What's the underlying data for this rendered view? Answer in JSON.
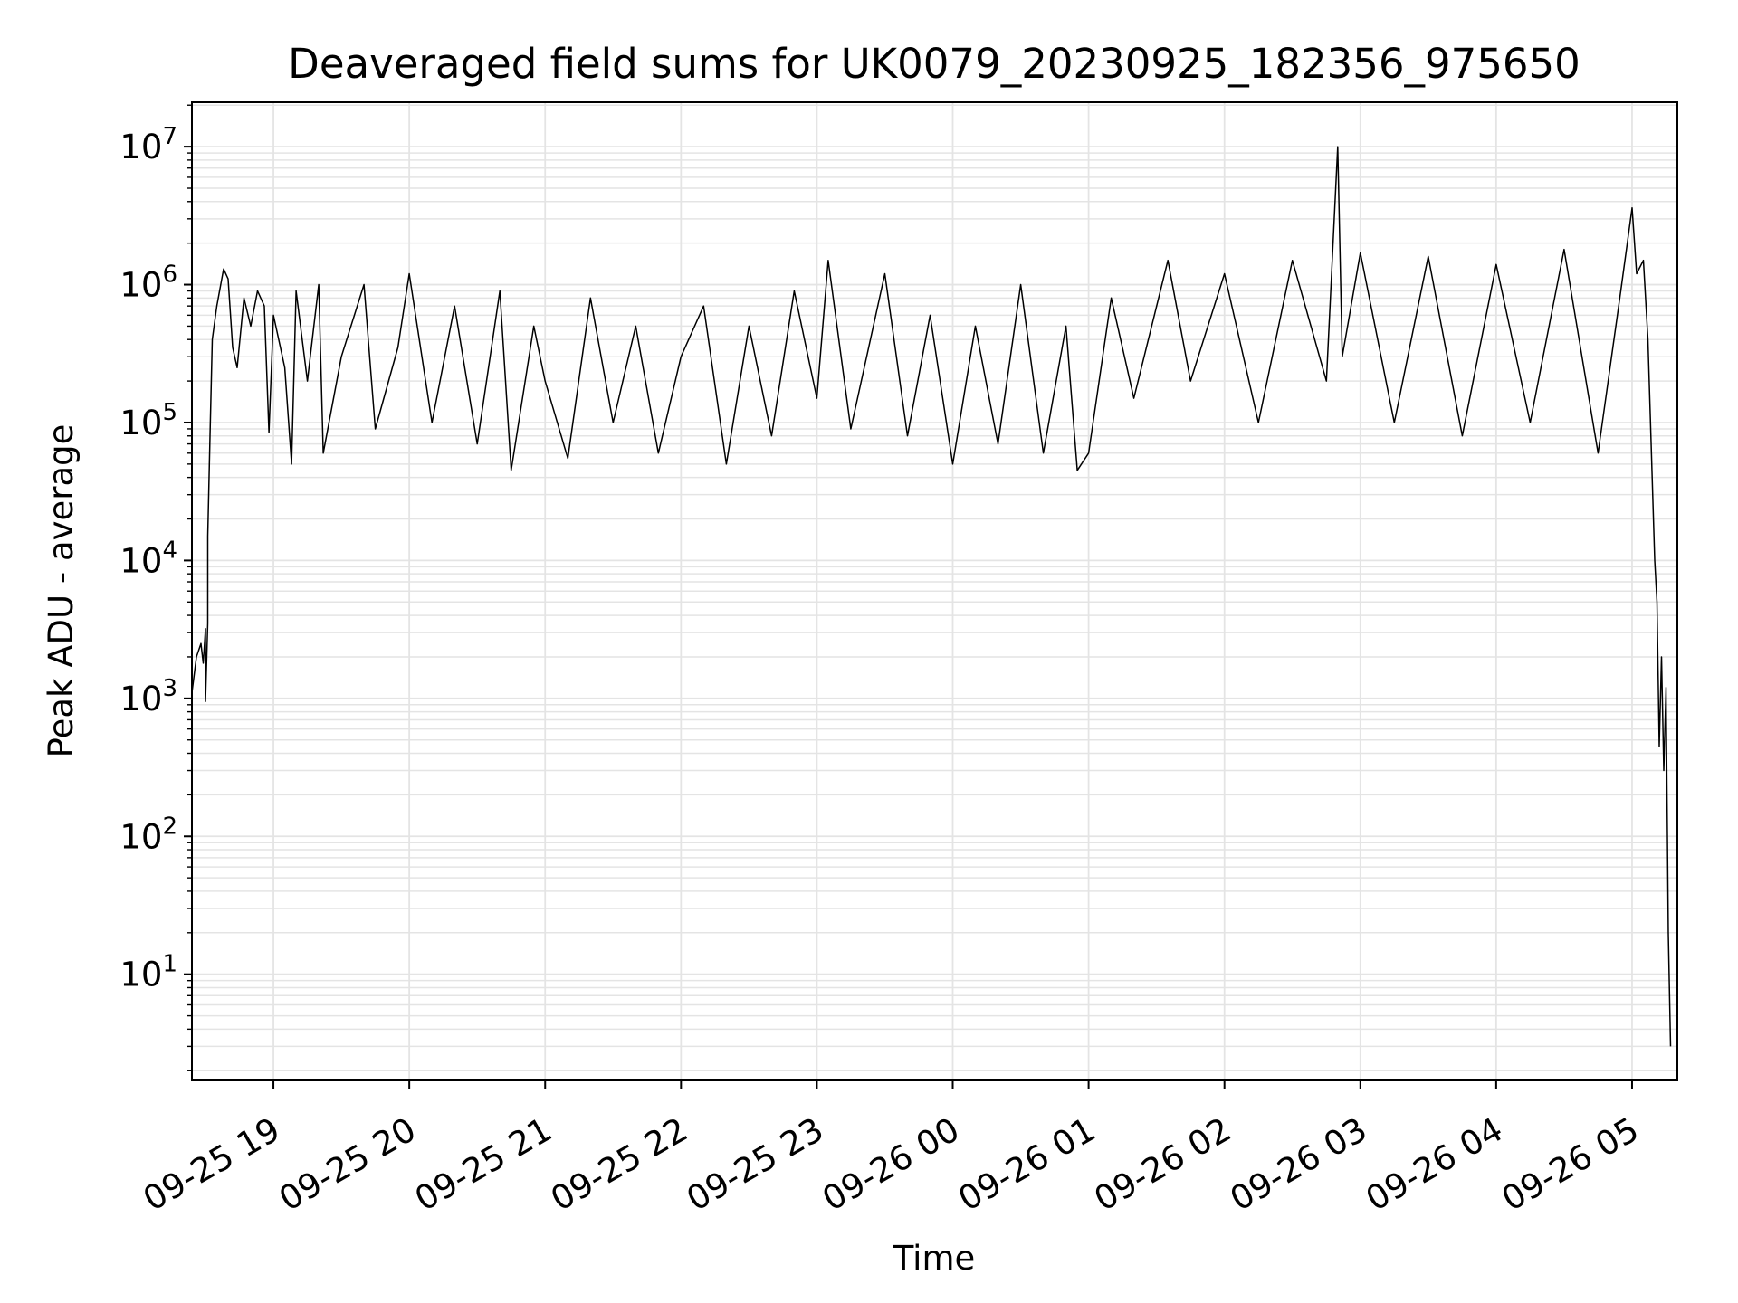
{
  "chart_data": {
    "type": "line",
    "title": "Deaveraged field sums for UK0079_20230925_182356_975650",
    "xlabel": "Time",
    "ylabel": "Peak ADU - average",
    "y_scale": "log",
    "ylim": [
      1.7,
      21000000
    ],
    "xlim": [
      "2023-09-25 18:24",
      "2023-09-26 05:20"
    ],
    "grid": true,
    "line_color": "#000000",
    "x_ticks": [
      {
        "label": "09-25 19",
        "t": "2023-09-25 19:00"
      },
      {
        "label": "09-25 20",
        "t": "2023-09-25 20:00"
      },
      {
        "label": "09-25 21",
        "t": "2023-09-25 21:00"
      },
      {
        "label": "09-25 22",
        "t": "2023-09-25 22:00"
      },
      {
        "label": "09-25 23",
        "t": "2023-09-25 23:00"
      },
      {
        "label": "09-26 00",
        "t": "2023-09-26 00:00"
      },
      {
        "label": "09-26 01",
        "t": "2023-09-26 01:00"
      },
      {
        "label": "09-26 02",
        "t": "2023-09-26 02:00"
      },
      {
        "label": "09-26 03",
        "t": "2023-09-26 03:00"
      },
      {
        "label": "09-26 04",
        "t": "2023-09-26 04:00"
      },
      {
        "label": "09-26 05",
        "t": "2023-09-26 05:00"
      }
    ],
    "y_ticks": [
      {
        "base": "10",
        "exp": "1",
        "value": 10
      },
      {
        "base": "10",
        "exp": "2",
        "value": 100
      },
      {
        "base": "10",
        "exp": "3",
        "value": 1000
      },
      {
        "base": "10",
        "exp": "4",
        "value": 10000
      },
      {
        "base": "10",
        "exp": "5",
        "value": 100000
      },
      {
        "base": "10",
        "exp": "6",
        "value": 1000000
      },
      {
        "base": "10",
        "exp": "7",
        "value": 10000000
      }
    ],
    "series": [
      {
        "points": [
          [
            "2023-09-25 18:24",
            1100
          ],
          [
            "2023-09-25 18:26",
            2000
          ],
          [
            "2023-09-25 18:28",
            2500
          ],
          [
            "2023-09-25 18:29",
            1800
          ],
          [
            "2023-09-25 18:30",
            3200
          ],
          [
            "2023-09-25 18:30",
            950
          ],
          [
            "2023-09-25 18:31",
            3500
          ],
          [
            "2023-09-25 18:31",
            15000
          ],
          [
            "2023-09-25 18:32",
            80000
          ],
          [
            "2023-09-25 18:33",
            400000
          ],
          [
            "2023-09-25 18:35",
            700000
          ],
          [
            "2023-09-25 18:38",
            1300000
          ],
          [
            "2023-09-25 18:40",
            1100000
          ],
          [
            "2023-09-25 18:42",
            350000
          ],
          [
            "2023-09-25 18:44",
            250000
          ],
          [
            "2023-09-25 18:47",
            800000
          ],
          [
            "2023-09-25 18:50",
            500000
          ],
          [
            "2023-09-25 18:53",
            900000
          ],
          [
            "2023-09-25 18:56",
            700000
          ],
          [
            "2023-09-25 18:58",
            85000
          ],
          [
            "2023-09-25 19:00",
            600000
          ],
          [
            "2023-09-25 19:05",
            250000
          ],
          [
            "2023-09-25 19:08",
            50000
          ],
          [
            "2023-09-25 19:10",
            900000
          ],
          [
            "2023-09-25 19:15",
            200000
          ],
          [
            "2023-09-25 19:20",
            1000000
          ],
          [
            "2023-09-25 19:22",
            60000
          ],
          [
            "2023-09-25 19:30",
            300000
          ],
          [
            "2023-09-25 19:40",
            1000000
          ],
          [
            "2023-09-25 19:45",
            90000
          ],
          [
            "2023-09-25 19:55",
            350000
          ],
          [
            "2023-09-25 20:00",
            1200000
          ],
          [
            "2023-09-25 20:10",
            100000
          ],
          [
            "2023-09-25 20:20",
            700000
          ],
          [
            "2023-09-25 20:30",
            70000
          ],
          [
            "2023-09-25 20:40",
            900000
          ],
          [
            "2023-09-25 20:45",
            45000
          ],
          [
            "2023-09-25 20:55",
            500000
          ],
          [
            "2023-09-25 21:00",
            200000
          ],
          [
            "2023-09-25 21:10",
            55000
          ],
          [
            "2023-09-25 21:20",
            800000
          ],
          [
            "2023-09-25 21:30",
            100000
          ],
          [
            "2023-09-25 21:40",
            500000
          ],
          [
            "2023-09-25 21:50",
            60000
          ],
          [
            "2023-09-25 22:00",
            300000
          ],
          [
            "2023-09-25 22:10",
            700000
          ],
          [
            "2023-09-25 22:20",
            50000
          ],
          [
            "2023-09-25 22:30",
            500000
          ],
          [
            "2023-09-25 22:40",
            80000
          ],
          [
            "2023-09-25 22:50",
            900000
          ],
          [
            "2023-09-25 23:00",
            150000
          ],
          [
            "2023-09-25 23:05",
            1500000
          ],
          [
            "2023-09-25 23:15",
            90000
          ],
          [
            "2023-09-25 23:30",
            1200000
          ],
          [
            "2023-09-25 23:40",
            80000
          ],
          [
            "2023-09-25 23:50",
            600000
          ],
          [
            "2023-09-26 00:00",
            50000
          ],
          [
            "2023-09-26 00:10",
            500000
          ],
          [
            "2023-09-26 00:20",
            70000
          ],
          [
            "2023-09-26 00:30",
            1000000
          ],
          [
            "2023-09-26 00:40",
            60000
          ],
          [
            "2023-09-26 00:50",
            500000
          ],
          [
            "2023-09-26 00:55",
            45000
          ],
          [
            "2023-09-26 01:00",
            60000
          ],
          [
            "2023-09-26 01:10",
            800000
          ],
          [
            "2023-09-26 01:20",
            150000
          ],
          [
            "2023-09-26 01:35",
            1500000
          ],
          [
            "2023-09-26 01:45",
            200000
          ],
          [
            "2023-09-26 02:00",
            1200000
          ],
          [
            "2023-09-26 02:15",
            100000
          ],
          [
            "2023-09-26 02:30",
            1500000
          ],
          [
            "2023-09-26 02:45",
            200000
          ],
          [
            "2023-09-26 02:50",
            10000000
          ],
          [
            "2023-09-26 02:52",
            300000
          ],
          [
            "2023-09-26 03:00",
            1700000
          ],
          [
            "2023-09-26 03:15",
            100000
          ],
          [
            "2023-09-26 03:30",
            1600000
          ],
          [
            "2023-09-26 03:45",
            80000
          ],
          [
            "2023-09-26 04:00",
            1400000
          ],
          [
            "2023-09-26 04:15",
            100000
          ],
          [
            "2023-09-26 04:30",
            1800000
          ],
          [
            "2023-09-26 04:45",
            60000
          ],
          [
            "2023-09-26 04:55",
            900000
          ],
          [
            "2023-09-26 05:00",
            3600000
          ],
          [
            "2023-09-26 05:02",
            1200000
          ],
          [
            "2023-09-26 05:05",
            1500000
          ],
          [
            "2023-09-26 05:07",
            400000
          ],
          [
            "2023-09-26 05:10",
            10000
          ],
          [
            "2023-09-26 05:11",
            5000
          ],
          [
            "2023-09-26 05:12",
            450
          ],
          [
            "2023-09-26 05:13",
            2000
          ],
          [
            "2023-09-26 05:14",
            300
          ],
          [
            "2023-09-26 05:15",
            1200
          ],
          [
            "2023-09-26 05:16",
            20
          ],
          [
            "2023-09-26 05:17",
            3
          ]
        ]
      }
    ]
  }
}
